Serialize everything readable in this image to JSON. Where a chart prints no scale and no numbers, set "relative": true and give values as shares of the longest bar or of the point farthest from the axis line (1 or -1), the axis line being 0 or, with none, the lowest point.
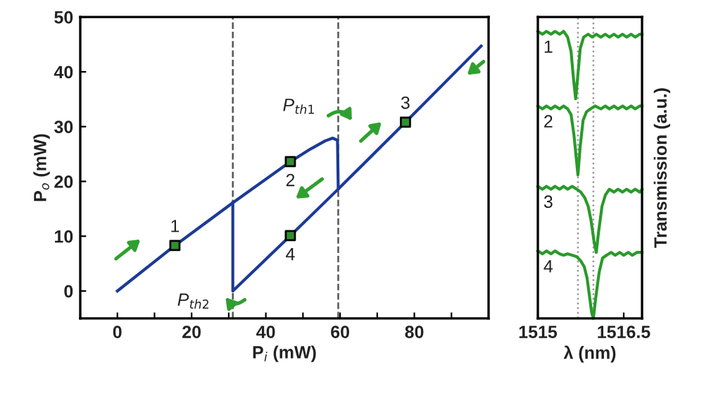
{
  "chart_data": [
    {
      "type": "line",
      "xlabel": "P$_{i}$ (mW)",
      "ylabel": "P$_{o}$ (mW)",
      "xlim": [
        -10,
        100
      ],
      "ylim": [
        -5,
        50
      ],
      "xticks": [
        {
          "value": -10,
          "label": null
        },
        0,
        {
          "value": 10,
          "label": null
        },
        20,
        {
          "value": 30,
          "label": null
        },
        40,
        {
          "value": 50,
          "label": null
        },
        60,
        {
          "value": 70,
          "label": null
        },
        80,
        {
          "value": 90,
          "label": null
        }
      ],
      "yticks": [
        0,
        10,
        20,
        30,
        40,
        50
      ],
      "grid": false,
      "series": [
        {
          "color": "#1c3a96",
          "x": [
            0,
            15.5,
            31.1,
            46.6,
            52,
            56,
            58,
            59.3,
            59.5,
            77.6,
            98
          ],
          "values": [
            0,
            8.3,
            16.1,
            23.6,
            25.9,
            27.4,
            27.9,
            27.5,
            18.6,
            30.8,
            44.7
          ]
        },
        {
          "color": "#1c3a96",
          "x": [
            59.5,
            46.6,
            31.1,
            31.1
          ],
          "values": [
            18.6,
            10.1,
            0,
            16.1
          ]
        },
        {
          "type": "scatter",
          "color": "#2f8f2f",
          "marker": "square",
          "x": [
            15.5,
            46.6,
            77.6,
            46.6
          ],
          "values": [
            8.3,
            23.6,
            30.8,
            10.1
          ]
        }
      ],
      "ref_lines": [
        {
          "axis": "x",
          "value": 59.5,
          "label": null,
          "color": "#555555",
          "line_style": "dashed"
        },
        {
          "axis": "x",
          "value": 31.1,
          "label": null,
          "color": "#555555",
          "line_style": "dashed"
        }
      ],
      "annotations": [
        {
          "text": "1",
          "x": 15.5,
          "y": 8.3
        },
        {
          "text": "2",
          "x": 46.6,
          "y": 23.6
        },
        {
          "text": "3",
          "x": 77.6,
          "y": 30.8
        },
        {
          "text": "4",
          "x": 46.6,
          "y": 10.1
        },
        {
          "text": "P$_{th1}$",
          "x": 59.5,
          "y": 27.9
        },
        {
          "text": "P$_{th2}$",
          "x": 31.1,
          "y": 0
        }
      ]
    },
    {
      "type": "line",
      "relative": true,
      "xlabel": "λ (nm)",
      "ylabel": "Transmission (a.u.)",
      "xlim": [
        1515,
        1516.82
      ],
      "xticks": [
        1515,
        1516.5
      ],
      "tick_labels": "x",
      "grid": false,
      "series": [
        {
          "name": "1",
          "color": "#2a9a2a",
          "x": [
            1515.0,
            1515.08,
            1515.15,
            1515.23,
            1515.3,
            1515.38,
            1515.45,
            1515.52,
            1515.58,
            1515.62,
            1515.66,
            1515.7,
            1515.74,
            1515.8,
            1515.88,
            1515.95,
            1516.02,
            1516.1,
            1516.18,
            1516.25,
            1516.33,
            1516.4,
            1516.48,
            1516.55,
            1516.63,
            1516.7,
            1516.78,
            1516.82
          ],
          "values": [
            1.0,
            0.99,
            1.0,
            0.99,
            1.0,
            0.99,
            1.0,
            0.98,
            0.93,
            0.84,
            0.765,
            0.85,
            0.94,
            0.98,
            0.99,
            0.98,
            0.99,
            0.98,
            0.99,
            0.98,
            0.99,
            0.98,
            0.99,
            0.98,
            0.99,
            0.98,
            0.99,
            0.99
          ]
        },
        {
          "name": "2",
          "color": "#2a9a2a",
          "x": [
            1515.0,
            1515.08,
            1515.15,
            1515.23,
            1515.3,
            1515.38,
            1515.45,
            1515.52,
            1515.58,
            1515.63,
            1515.67,
            1515.7,
            1515.74,
            1515.79,
            1515.85,
            1515.92,
            1516.0,
            1516.1,
            1516.18,
            1516.25,
            1516.33,
            1516.4,
            1516.48,
            1516.55,
            1516.63,
            1516.7,
            1516.78,
            1516.82
          ],
          "values": [
            0.74,
            0.73,
            0.74,
            0.73,
            0.74,
            0.73,
            0.74,
            0.73,
            0.71,
            0.64,
            0.56,
            0.5,
            0.6,
            0.69,
            0.72,
            0.73,
            0.74,
            0.73,
            0.74,
            0.73,
            0.74,
            0.73,
            0.74,
            0.73,
            0.74,
            0.73,
            0.74,
            0.74
          ]
        },
        {
          "name": "3",
          "color": "#2a9a2a",
          "x": [
            1515.0,
            1515.08,
            1515.15,
            1515.23,
            1515.3,
            1515.38,
            1515.45,
            1515.52,
            1515.6,
            1515.68,
            1515.75,
            1515.82,
            1515.88,
            1515.93,
            1515.98,
            1516.02,
            1516.06,
            1516.12,
            1516.18,
            1516.25,
            1516.33,
            1516.4,
            1516.48,
            1516.55,
            1516.63,
            1516.7,
            1516.78,
            1516.82
          ],
          "values": [
            0.46,
            0.45,
            0.46,
            0.45,
            0.46,
            0.45,
            0.46,
            0.45,
            0.46,
            0.45,
            0.44,
            0.42,
            0.39,
            0.34,
            0.27,
            0.23,
            0.3,
            0.39,
            0.43,
            0.45,
            0.44,
            0.45,
            0.44,
            0.45,
            0.44,
            0.45,
            0.44,
            0.45
          ]
        },
        {
          "name": "4",
          "color": "#2a9a2a",
          "x": [
            1515.0,
            1515.08,
            1515.15,
            1515.23,
            1515.3,
            1515.38,
            1515.45,
            1515.52,
            1515.6,
            1515.68,
            1515.75,
            1515.81,
            1515.86,
            1515.9,
            1515.94,
            1515.97,
            1516.01,
            1516.07,
            1516.13,
            1516.2,
            1516.28,
            1516.35,
            1516.43,
            1516.5,
            1516.58,
            1516.65,
            1516.73,
            1516.82
          ],
          "values": [
            0.235,
            0.225,
            0.235,
            0.225,
            0.235,
            0.225,
            0.22,
            0.225,
            0.22,
            0.215,
            0.2,
            0.18,
            0.14,
            0.08,
            0.02,
            0.0,
            0.07,
            0.16,
            0.21,
            0.22,
            0.23,
            0.22,
            0.23,
            0.22,
            0.23,
            0.22,
            0.23,
            0.23
          ]
        }
      ],
      "ref_lines": [
        {
          "axis": "x",
          "value": 1515.7,
          "label": null,
          "color": "#999999",
          "line_style": "dotted"
        },
        {
          "axis": "x",
          "value": 1515.97,
          "label": null,
          "color": "#999999",
          "line_style": "dotted"
        }
      ]
    }
  ]
}
